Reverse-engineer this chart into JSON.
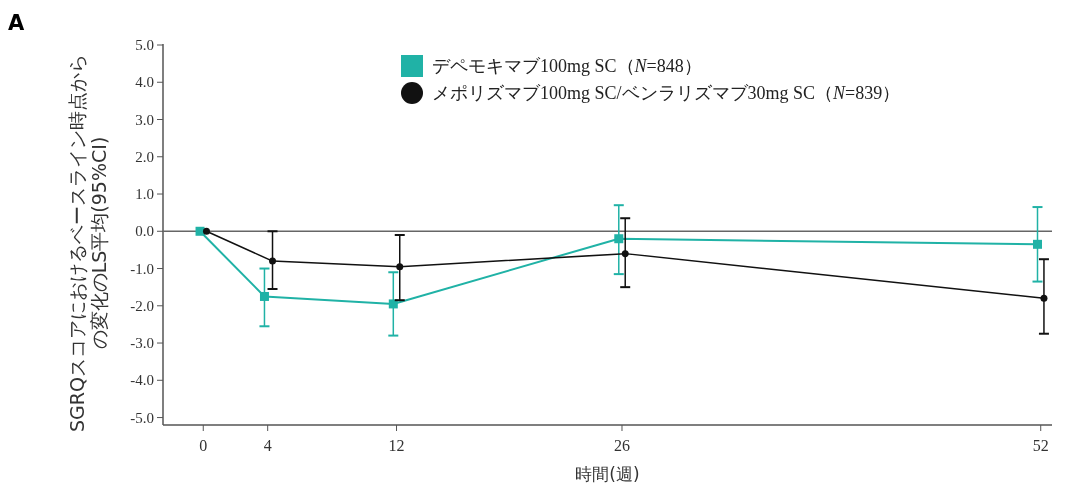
{
  "chart_data": {
    "type": "line",
    "title": "A",
    "xlabel": "時間(週)",
    "ylabel": "SGRQスコアにおけるベースライン時点からの変化のLS平均(95%CI)",
    "xlim": [
      -2.5,
      52.7
    ],
    "xticks": [
      0,
      4,
      12,
      26,
      52
    ],
    "ylim": [
      -5.2,
      5.0
    ],
    "yticks": [
      {
        "value": -5,
        "label": "-5.0"
      },
      {
        "value": -4,
        "label": "-4.0"
      },
      {
        "value": -3,
        "label": "-3.0"
      },
      {
        "value": -2,
        "label": "-2.0"
      },
      {
        "value": -1,
        "label": "-1.0"
      },
      {
        "value": 0,
        "label": "0.0"
      },
      {
        "value": 1,
        "label": "1.0"
      },
      {
        "value": 2,
        "label": "2.0"
      },
      {
        "value": 3,
        "label": "3.0"
      },
      {
        "value": 4,
        "label": "4.0"
      },
      {
        "value": 5,
        "label": "5.0"
      }
    ],
    "grid": false,
    "legend": "top",
    "ref_lines": [
      {
        "axis": "y",
        "value": 0,
        "color": "#666666"
      }
    ],
    "series": [
      {
        "name": "デペモキマブ100mg SC（N=848）",
        "color": "#20b2a6",
        "marker": "square",
        "x": [
          -0.2,
          3.8,
          11.8,
          25.8,
          51.8
        ],
        "values": [
          0,
          -1.75,
          -1.95,
          -0.2,
          -0.35
        ],
        "errors": [
          null,
          [
            -2.55,
            -1.0
          ],
          [
            -2.8,
            -1.1
          ],
          [
            -1.15,
            0.7
          ],
          [
            -1.35,
            0.65
          ]
        ]
      },
      {
        "name": "メポリズマブ100mg SC/ベンラリズマブ30mg SC（N=839）",
        "color": "#111111",
        "marker": "circle",
        "x": [
          0.2,
          4.3,
          12.2,
          26.2,
          52.2
        ],
        "values": [
          0,
          -0.8,
          -0.95,
          -0.6,
          -1.8
        ],
        "errors": [
          null,
          [
            -1.55,
            0.0
          ],
          [
            -1.85,
            -0.1
          ],
          [
            -1.5,
            0.35
          ],
          [
            -2.75,
            -0.75
          ]
        ]
      }
    ]
  }
}
